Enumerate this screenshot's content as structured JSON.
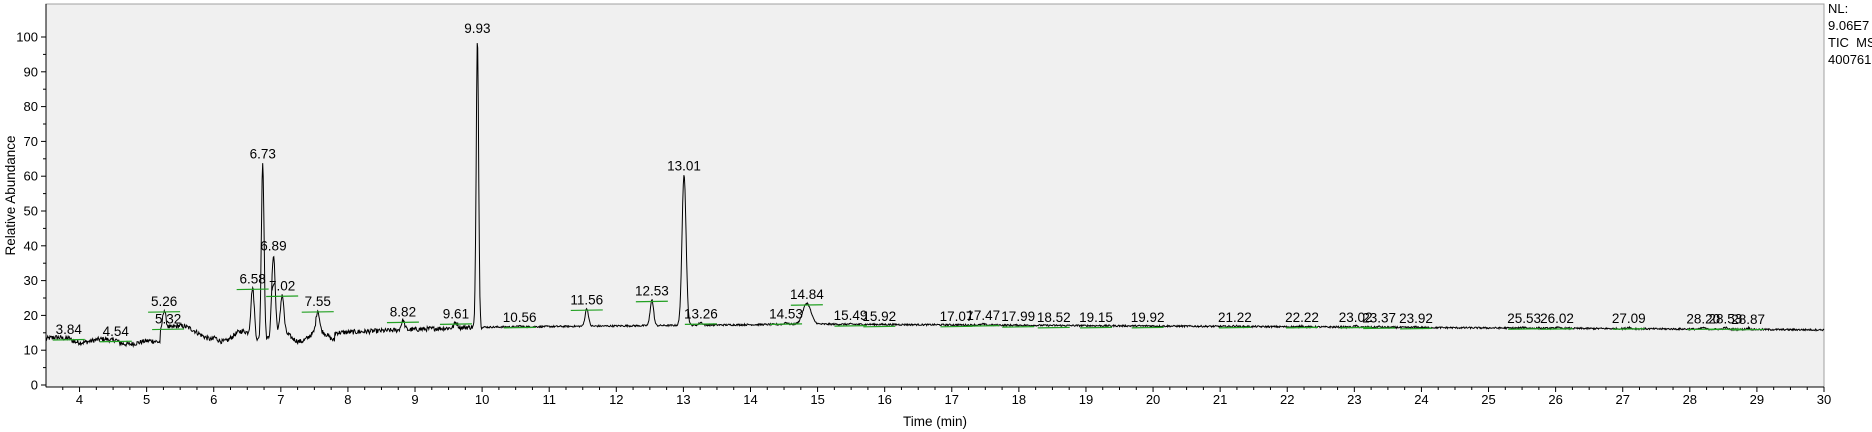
{
  "info": {
    "nl_label": "NL:",
    "nl_value": "9.06E7",
    "scan_filter": "TIC  MS",
    "file_id": "400761"
  },
  "chart_data": {
    "type": "line",
    "xlabel": "Time (min)",
    "ylabel": "Relative Abundance",
    "xlim": [
      3.5,
      30
    ],
    "ylim": [
      0,
      105
    ],
    "x_ticks": [
      4,
      5,
      6,
      7,
      8,
      9,
      10,
      11,
      12,
      13,
      14,
      15,
      16,
      17,
      18,
      19,
      20,
      21,
      22,
      23,
      24,
      25,
      26,
      27,
      28,
      29,
      30
    ],
    "y_ticks": [
      0,
      10,
      20,
      30,
      40,
      50,
      60,
      70,
      80,
      90,
      100
    ],
    "colors": {
      "trace": "#000000",
      "baseline_marks": "#22a022",
      "plot_bg": "#f0f0f0"
    },
    "peaks": [
      {
        "rt": "3.84",
        "x": 3.84,
        "y": 13.5
      },
      {
        "rt": "4.54",
        "x": 4.54,
        "y": 13.0
      },
      {
        "rt": "5.26",
        "x": 5.26,
        "y": 21.5
      },
      {
        "rt": "5.32",
        "x": 5.32,
        "y": 16.5
      },
      {
        "rt": "6.58",
        "x": 6.58,
        "y": 28.0
      },
      {
        "rt": "6.73",
        "x": 6.73,
        "y": 64.0
      },
      {
        "rt": "6.89",
        "x": 6.89,
        "y": 37.5
      },
      {
        "rt": "7.02",
        "x": 7.02,
        "y": 26.0
      },
      {
        "rt": "7.55",
        "x": 7.55,
        "y": 21.5
      },
      {
        "rt": "8.82",
        "x": 8.82,
        "y": 18.5
      },
      {
        "rt": "9.61",
        "x": 9.61,
        "y": 18.0
      },
      {
        "rt": "9.93",
        "x": 9.93,
        "y": 100.0
      },
      {
        "rt": "10.56",
        "x": 10.56,
        "y": 17.0
      },
      {
        "rt": "11.56",
        "x": 11.56,
        "y": 22.0
      },
      {
        "rt": "12.53",
        "x": 12.53,
        "y": 24.5
      },
      {
        "rt": "13.01",
        "x": 13.01,
        "y": 60.5
      },
      {
        "rt": "13.26",
        "x": 13.26,
        "y": 18.0
      },
      {
        "rt": "14.53",
        "x": 14.53,
        "y": 18.0
      },
      {
        "rt": "14.84",
        "x": 14.84,
        "y": 23.5
      },
      {
        "rt": "15.49",
        "x": 15.49,
        "y": 17.5
      },
      {
        "rt": "15.92",
        "x": 15.92,
        "y": 17.3
      },
      {
        "rt": "17.07",
        "x": 17.07,
        "y": 17.3
      },
      {
        "rt": "17.47",
        "x": 17.47,
        "y": 17.5
      },
      {
        "rt": "17.99",
        "x": 17.99,
        "y": 17.2
      },
      {
        "rt": "18.52",
        "x": 18.52,
        "y": 17.0
      },
      {
        "rt": "19.15",
        "x": 19.15,
        "y": 17.0
      },
      {
        "rt": "19.92",
        "x": 19.92,
        "y": 17.0
      },
      {
        "rt": "21.22",
        "x": 21.22,
        "y": 17.0
      },
      {
        "rt": "22.22",
        "x": 22.22,
        "y": 17.0
      },
      {
        "rt": "23.02",
        "x": 23.02,
        "y": 17.0
      },
      {
        "rt": "23.37",
        "x": 23.37,
        "y": 16.8
      },
      {
        "rt": "23.92",
        "x": 23.92,
        "y": 16.7
      },
      {
        "rt": "25.53",
        "x": 25.53,
        "y": 16.6
      },
      {
        "rt": "26.02",
        "x": 26.02,
        "y": 16.6
      },
      {
        "rt": "27.09",
        "x": 27.09,
        "y": 16.6
      },
      {
        "rt": "28.20",
        "x": 28.2,
        "y": 16.5
      },
      {
        "rt": "28.53",
        "x": 28.53,
        "y": 16.5
      },
      {
        "rt": "28.87",
        "x": 28.87,
        "y": 16.4
      }
    ]
  }
}
